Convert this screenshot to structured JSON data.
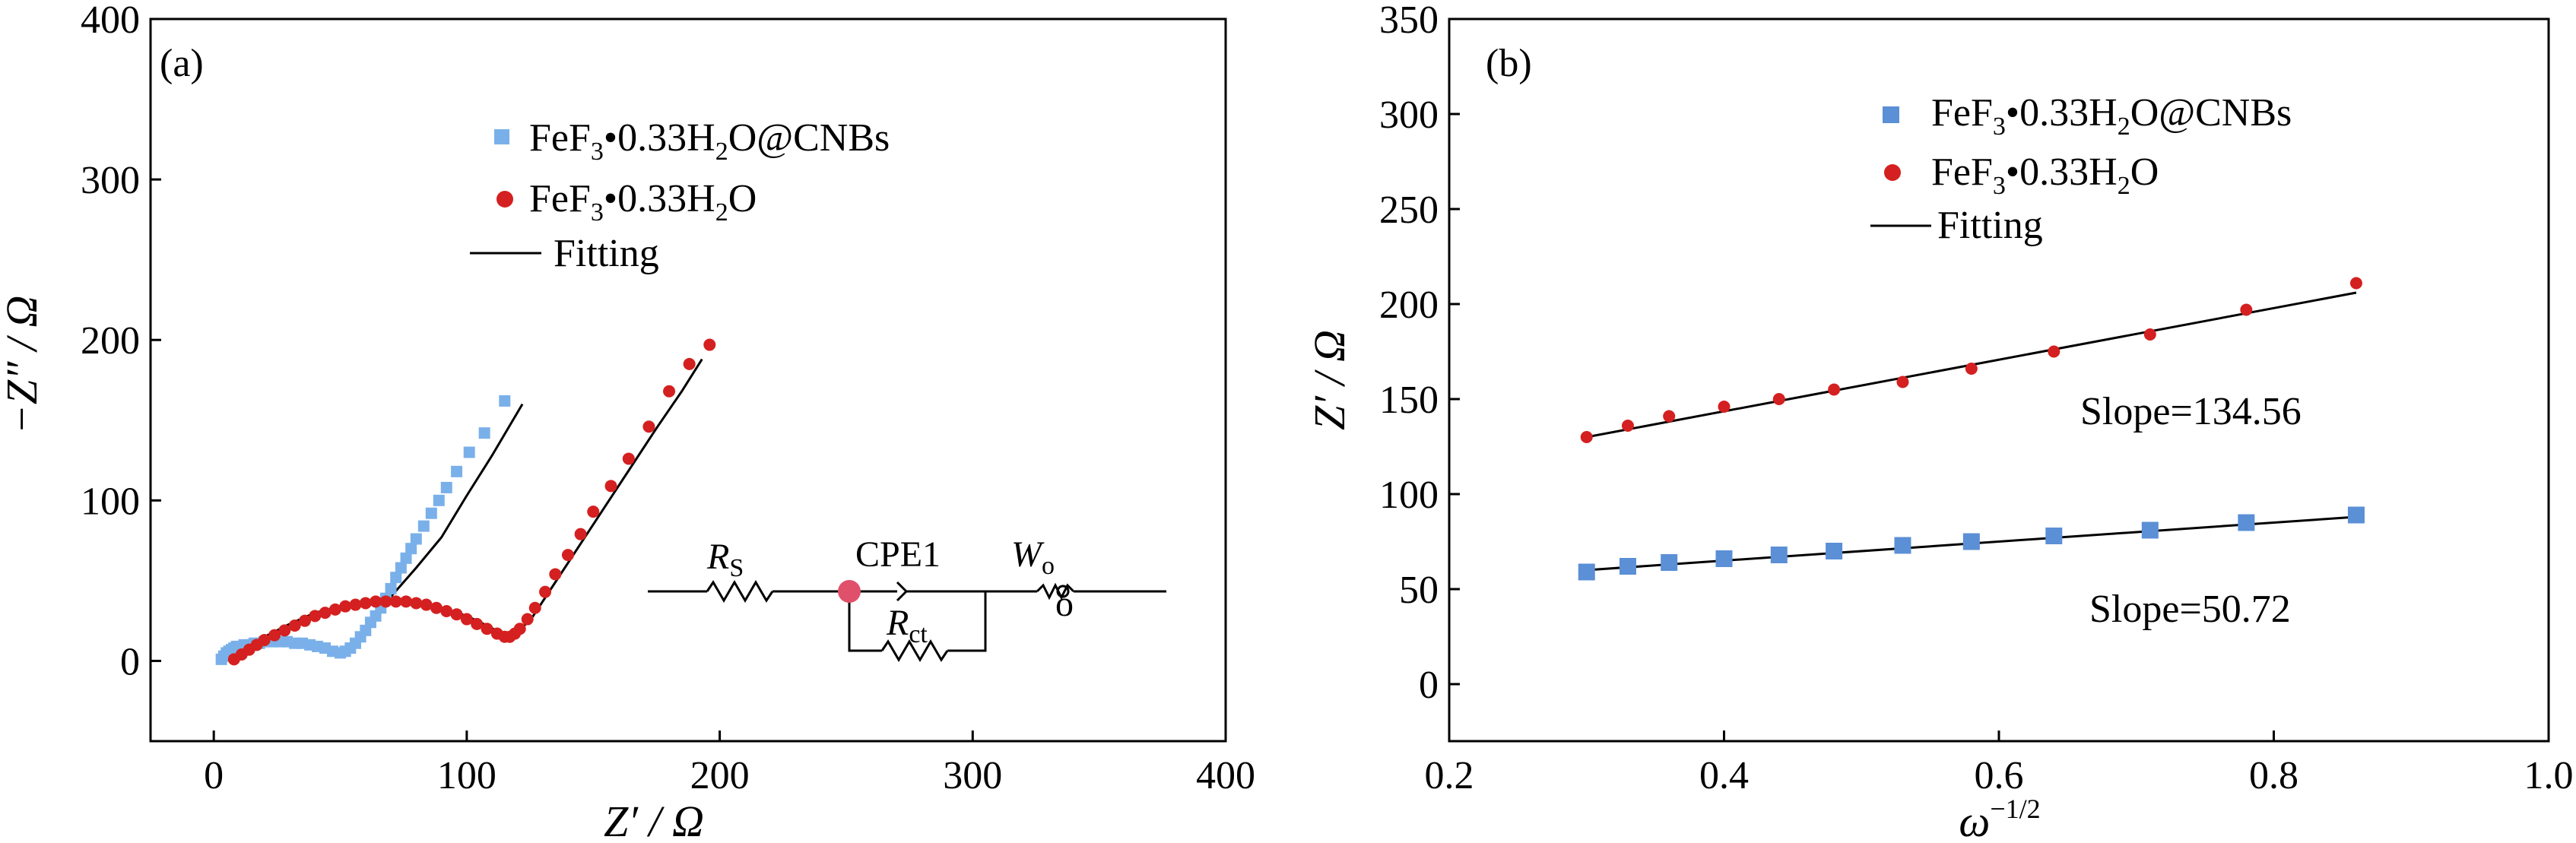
{
  "colors": {
    "cnbs": "#7ab0ea",
    "cnbs_b": "#5b8fd6",
    "plain": "#d42020",
    "fit": "#000000"
  },
  "chart_data": [
    {
      "type": "scatter",
      "panel_label": "(a)",
      "xlabel": "Z′ / Ω",
      "ylabel": "−Z″ / Ω",
      "xlim": [
        -25,
        400
      ],
      "ylim": [
        -50,
        400
      ],
      "xticks": [
        "0",
        "100",
        "200",
        "300",
        "400"
      ],
      "yticks": [
        "0",
        "100",
        "200",
        "300",
        "400"
      ],
      "legend": {
        "cnbs": {
          "base": "FeF",
          "s1": "3",
          "mid": "•0.33H",
          "s2": "2",
          "tail": "O@CNBs"
        },
        "plain": {
          "base": "FeF",
          "s1": "3",
          "mid": "•0.33H",
          "s2": "2",
          "tail": "O"
        },
        "fit": "Fitting"
      },
      "circuit": {
        "rs_main": "R",
        "rs_sub": "S",
        "cpe": "CPE1",
        "rct_main": "R",
        "rct_sub": "ct",
        "wo_main": "W",
        "wo_sub": "o",
        "wo_sub2": "o"
      },
      "series": [
        {
          "name": "FeF3•0.33H2O@CNBs",
          "marker": "square",
          "x": [
            3,
            4,
            5,
            6,
            7,
            8,
            9,
            10,
            12,
            14,
            16,
            18,
            20,
            23,
            26,
            29,
            32,
            35,
            38,
            41,
            44,
            47,
            50,
            52,
            54,
            56,
            58,
            60,
            62,
            64,
            66,
            68,
            70,
            72,
            74,
            76,
            78,
            80,
            83,
            86,
            89,
            92,
            96,
            101,
            107,
            115
          ],
          "y": [
            1,
            3,
            5,
            6,
            7,
            8,
            9,
            9,
            10,
            10,
            11,
            11,
            12,
            12,
            12,
            12,
            11,
            11,
            10,
            9,
            8,
            6,
            5,
            6,
            8,
            11,
            15,
            19,
            24,
            28,
            33,
            39,
            45,
            52,
            58,
            64,
            70,
            76,
            84,
            92,
            100,
            108,
            118,
            130,
            142,
            162
          ]
        },
        {
          "name": "FeF3•0.33H2O",
          "marker": "circle",
          "x": [
            8,
            11,
            14,
            17,
            20,
            24,
            28,
            32,
            36,
            40,
            44,
            48,
            52,
            56,
            60,
            64,
            68,
            72,
            76,
            80,
            84,
            88,
            92,
            96,
            100,
            104,
            108,
            112,
            115,
            117,
            119,
            121,
            124,
            127,
            131,
            135,
            140,
            145,
            150,
            157,
            164,
            172,
            180,
            188,
            196
          ],
          "y": [
            1,
            4,
            7,
            10,
            13,
            16,
            19,
            22,
            25,
            28,
            30,
            32,
            34,
            35,
            36,
            37,
            37,
            37,
            37,
            36,
            35,
            33,
            31,
            29,
            26,
            23,
            20,
            17,
            15,
            15,
            17,
            20,
            26,
            33,
            43,
            54,
            66,
            79,
            93,
            109,
            126,
            146,
            168,
            185,
            197
          ]
        },
        {
          "name": "Fitting",
          "marker": "line",
          "x": [
            5,
            10,
            15,
            20,
            25,
            30,
            35,
            40,
            45,
            48,
            50,
            55,
            60,
            65,
            70,
            80,
            90,
            100,
            110,
            122
          ],
          "y": [
            0,
            5,
            8,
            10,
            11,
            12,
            12,
            10,
            7,
            5,
            5,
            12,
            21,
            31,
            40,
            58,
            77,
            103,
            128,
            160
          ]
        },
        {
          "name": "Fitting",
          "marker": "line",
          "x": [
            8,
            12,
            20,
            30,
            40,
            50,
            60,
            70,
            80,
            90,
            100,
            108,
            114,
            118,
            125,
            135,
            145,
            155,
            165,
            175,
            185,
            193
          ],
          "y": [
            0,
            6,
            15,
            23,
            30,
            34,
            37,
            37,
            36,
            33,
            28,
            22,
            17,
            16,
            25,
            49,
            73,
            97,
            121,
            145,
            168,
            188
          ]
        }
      ]
    },
    {
      "type": "scatter",
      "panel_label": "(b)",
      "xlabel_main": "ω",
      "xlabel_sup": "−1/2",
      "ylabel": "Z′ / Ω",
      "xlim": [
        0.2,
        1.0
      ],
      "ylim": [
        -30,
        350
      ],
      "xticks": [
        "0.2",
        "0.4",
        "0.6",
        "0.8",
        "1.0"
      ],
      "yticks": [
        "0",
        "50",
        "100",
        "150",
        "200",
        "250",
        "300",
        "350"
      ],
      "legend": {
        "cnbs": {
          "base": "FeF",
          "s1": "3",
          "mid": "•0.33H",
          "s2": "2",
          "tail": "O@CNBs"
        },
        "plain": {
          "base": "FeF",
          "s1": "3",
          "mid": "•0.33H",
          "s2": "2",
          "tail": "O"
        },
        "fit": "Fitting"
      },
      "annotations": {
        "slope_top": "Slope=134.56",
        "slope_bottom": "Slope=50.72"
      },
      "series": [
        {
          "name": "FeF3•0.33H2O@CNBs",
          "marker": "square",
          "x": [
            0.3,
            0.33,
            0.36,
            0.4,
            0.44,
            0.48,
            0.53,
            0.58,
            0.64,
            0.71,
            0.78,
            0.86
          ],
          "y": [
            59,
            62,
            64,
            66,
            68,
            70,
            73,
            75,
            78,
            81,
            85,
            89
          ]
        },
        {
          "name": "FeF3•0.33H2O",
          "marker": "circle",
          "x": [
            0.3,
            0.33,
            0.36,
            0.4,
            0.44,
            0.48,
            0.53,
            0.58,
            0.64,
            0.71,
            0.78,
            0.86
          ],
          "y": [
            130,
            136,
            141,
            146,
            150,
            155,
            159,
            166,
            175,
            184,
            197,
            211
          ]
        },
        {
          "name": "Fitting",
          "marker": "line",
          "x": [
            0.3,
            0.86
          ],
          "y": [
            130,
            206
          ]
        },
        {
          "name": "Fitting",
          "marker": "line",
          "x": [
            0.3,
            0.86
          ],
          "y": [
            60,
            88
          ]
        }
      ]
    }
  ]
}
